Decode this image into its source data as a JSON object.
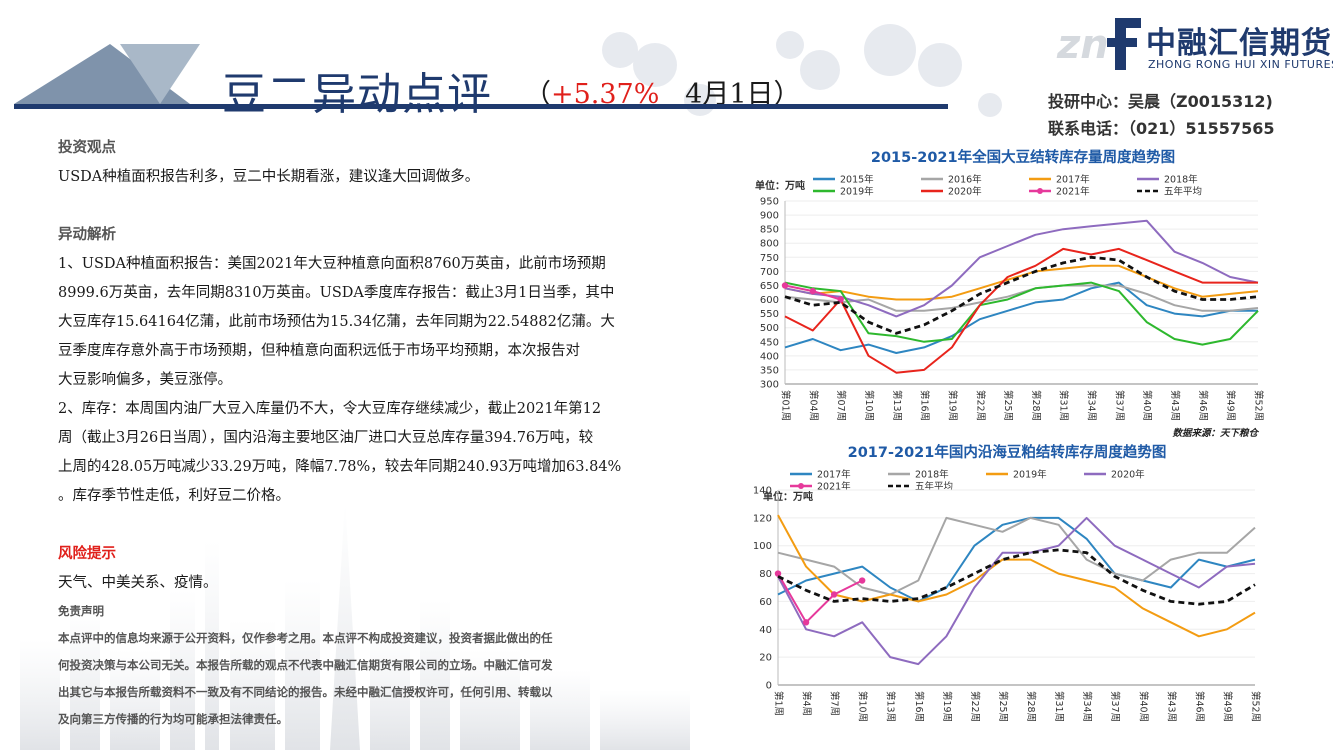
{
  "header": {
    "title": "豆二异动点评",
    "paren_open": "（",
    "change": "+5.37%",
    "date": "4月1日）",
    "logo_cn": "中融汇信期货",
    "logo_en": "ZHONG RONG HUI XIN FUTURES",
    "contact_dept": "投研中心：吴晨（Z0015312)",
    "contact_phone": "联系电话：（021）51557565"
  },
  "colors": {
    "brand": "#1f3a6e",
    "accent_red": "#e0201b",
    "header_triangle": "#7f93ab"
  },
  "content": {
    "view_heading": "投资观点",
    "view_text": "USDA种植面积报告利多，豆二中长期看涨，建议逢大回调做多。",
    "analysis_heading": "异动解析",
    "analysis_lines": [
      "1、USDA种植面积报告：美国2021年大豆种植意向面积8760万英亩，此前市场预期",
      "8999.6万英亩，去年同期8310万英亩。USDA季度库存报告：截止3月1日当季，其中",
      "大豆库存15.64164亿蒲，此前市场预估为15.34亿蒲，去年同期为22.54882亿蒲。大",
      "豆季度库存意外高于市场预期，但种植意向面积远低于市场平均预期，本次报告对",
      "大豆影响偏多，美豆涨停。",
      "2、库存：本周国内油厂大豆入库量仍不大，令大豆库存继续减少，截止2021年第12",
      "周（截止3月26日当周），国内沿海主要地区油厂进口大豆总库存量394.76万吨，较",
      "上周的428.05万吨减少33.29万吨，降幅7.78%，较去年同期240.93万吨增加63.84%",
      "。库存季节性走低，利好豆二价格。"
    ],
    "risk_heading": "风险提示",
    "risk_text": "天气、中美关系、疫情。",
    "disclaimer_heading": "免责声明",
    "disclaimer_lines": [
      "本点评中的信息均来源于公开资料，仅作参考之用。本点评不构成投资建议，投资者据此做出的任",
      "何投资决策与本公司无关。本报告所载的观点不代表中融汇信期货有限公司的立场。中融汇信可发",
      "出其它与本报告所载资料不一致及有不同结论的报告。未经中融汇信授权许可，任何引用、转载以",
      "及向第三方传播的行为均可能承担法律责任。"
    ]
  },
  "chart_data": [
    {
      "type": "line",
      "title": "2015-2021年全国大豆结转库存量周度趋势图",
      "unit": "单位：万吨",
      "source": "数据来源：天下粮仓",
      "ylim": [
        300,
        950
      ],
      "yticks": [
        300,
        350,
        400,
        450,
        500,
        550,
        600,
        650,
        700,
        750,
        800,
        850,
        900,
        950
      ],
      "x_tick_labels": [
        "第01周",
        "第04周",
        "第07周",
        "第10周",
        "第13周",
        "第16周",
        "第19周",
        "第22周",
        "第25周",
        "第28周",
        "第31周",
        "第34周",
        "第37周",
        "第40周",
        "第43周",
        "第46周",
        "第49周",
        "第52周"
      ],
      "x": [
        1,
        4,
        7,
        10,
        13,
        16,
        19,
        22,
        25,
        28,
        31,
        34,
        37,
        40,
        43,
        46,
        49,
        52
      ],
      "series": [
        {
          "name": "2015年",
          "color": "#2e86c1",
          "values": [
            430,
            460,
            420,
            440,
            410,
            430,
            470,
            530,
            560,
            590,
            600,
            640,
            660,
            580,
            550,
            540,
            560,
            560
          ]
        },
        {
          "name": "2016年",
          "color": "#a6a6a6",
          "values": [
            610,
            600,
            590,
            600,
            560,
            560,
            570,
            590,
            610,
            640,
            650,
            650,
            650,
            620,
            580,
            560,
            560,
            570
          ]
        },
        {
          "name": "2017年",
          "color": "#f39c12",
          "values": [
            640,
            620,
            630,
            610,
            600,
            600,
            610,
            640,
            670,
            700,
            710,
            720,
            720,
            680,
            640,
            610,
            620,
            630
          ]
        },
        {
          "name": "2018年",
          "color": "#8e6bbf",
          "values": [
            640,
            620,
            610,
            580,
            540,
            580,
            650,
            750,
            790,
            830,
            850,
            860,
            870,
            880,
            770,
            730,
            680,
            660
          ]
        },
        {
          "name": "2019年",
          "color": "#2eb82e",
          "values": [
            660,
            640,
            630,
            480,
            470,
            450,
            460,
            580,
            600,
            640,
            650,
            660,
            630,
            520,
            460,
            440,
            460,
            560
          ]
        },
        {
          "name": "2020年",
          "color": "#e8241c",
          "values": [
            540,
            490,
            600,
            400,
            340,
            350,
            430,
            580,
            680,
            720,
            780,
            760,
            780,
            740,
            700,
            660,
            660,
            660
          ]
        },
        {
          "name": "2021年",
          "color": "#e6399b",
          "values": [
            650,
            630,
            600,
            null,
            null,
            null,
            null,
            null,
            null,
            null,
            null,
            null,
            null,
            null,
            null,
            null,
            null,
            null
          ]
        },
        {
          "name": "五年平均",
          "color": "#111111",
          "dashed": true,
          "values": [
            610,
            580,
            590,
            520,
            480,
            510,
            560,
            620,
            660,
            700,
            730,
            750,
            740,
            680,
            630,
            600,
            600,
            610
          ]
        }
      ]
    },
    {
      "type": "line",
      "title": "2017-2021年国内沿海豆粕结转库存周度趋势图",
      "unit": "单位：万吨",
      "ylim": [
        0,
        140
      ],
      "yticks": [
        0,
        20,
        40,
        60,
        80,
        100,
        120,
        140
      ],
      "x_tick_labels": [
        "第1周",
        "第4周",
        "第7周",
        "第10周",
        "第13周",
        "第16周",
        "第19周",
        "第22周",
        "第25周",
        "第28周",
        "第31周",
        "第34周",
        "第37周",
        "第40周",
        "第43周",
        "第46周",
        "第49周",
        "第52周"
      ],
      "x": [
        1,
        4,
        7,
        10,
        13,
        16,
        19,
        22,
        25,
        28,
        31,
        34,
        37,
        40,
        43,
        46,
        49,
        52
      ],
      "series": [
        {
          "name": "2017年",
          "color": "#2e86c1",
          "values": [
            65,
            75,
            80,
            85,
            70,
            60,
            70,
            100,
            115,
            120,
            120,
            105,
            80,
            75,
            70,
            90,
            85,
            90
          ]
        },
        {
          "name": "2018年",
          "color": "#a6a6a6",
          "values": [
            95,
            90,
            85,
            70,
            65,
            75,
            120,
            115,
            110,
            120,
            115,
            90,
            80,
            75,
            90,
            95,
            95,
            113
          ]
        },
        {
          "name": "2019年",
          "color": "#f39c12",
          "values": [
            122,
            85,
            65,
            60,
            65,
            60,
            65,
            75,
            90,
            90,
            80,
            75,
            70,
            55,
            45,
            35,
            40,
            52
          ]
        },
        {
          "name": "2020年",
          "color": "#8e6bbf",
          "values": [
            78,
            40,
            35,
            45,
            20,
            15,
            35,
            70,
            95,
            95,
            100,
            120,
            100,
            90,
            80,
            70,
            85,
            87
          ]
        },
        {
          "name": "2021年",
          "color": "#e6399b",
          "values": [
            80,
            45,
            65,
            75,
            null,
            null,
            null,
            null,
            null,
            null,
            null,
            null,
            null,
            null,
            null,
            null,
            null,
            null
          ]
        },
        {
          "name": "五年平均",
          "color": "#111111",
          "dashed": true,
          "values": [
            78,
            68,
            60,
            62,
            60,
            62,
            70,
            80,
            90,
            95,
            97,
            95,
            78,
            68,
            60,
            58,
            60,
            72
          ]
        }
      ]
    }
  ]
}
